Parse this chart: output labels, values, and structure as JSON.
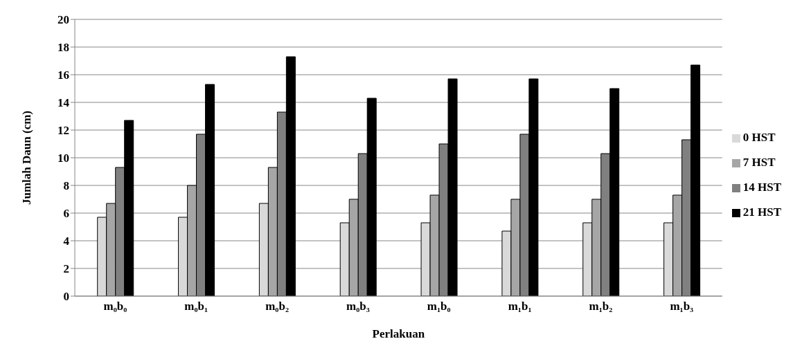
{
  "chart_data": {
    "type": "bar",
    "xlabel": "Perlakuan",
    "ylabel": "Jumlah Daun (cm)",
    "categories": [
      "m₀b₀",
      "m₀b₁",
      "m₀b₂",
      "m₀b₃",
      "m₁b₀",
      "m₁b₁",
      "m₁b₂",
      "m₁b₃"
    ],
    "series": [
      {
        "name": "0 HST",
        "color": "#d9d9d9",
        "values": [
          5.7,
          5.7,
          6.7,
          5.3,
          5.3,
          4.7,
          5.3,
          5.3
        ]
      },
      {
        "name": "7 HST",
        "color": "#a6a6a6",
        "values": [
          6.7,
          8.0,
          9.3,
          7.0,
          7.3,
          7.0,
          7.0,
          7.3
        ]
      },
      {
        "name": "14 HST",
        "color": "#808080",
        "values": [
          9.3,
          11.7,
          13.3,
          10.3,
          11.0,
          11.7,
          10.3,
          11.3
        ]
      },
      {
        "name": "21 HST",
        "color": "#000000",
        "values": [
          12.7,
          15.3,
          17.3,
          14.3,
          15.7,
          15.7,
          15.0,
          16.7
        ]
      }
    ],
    "ylim": [
      0,
      20
    ],
    "yticks": [
      0,
      2,
      4,
      6,
      8,
      10,
      12,
      14,
      16,
      18,
      20
    ],
    "grid": "y",
    "legend": "right"
  }
}
